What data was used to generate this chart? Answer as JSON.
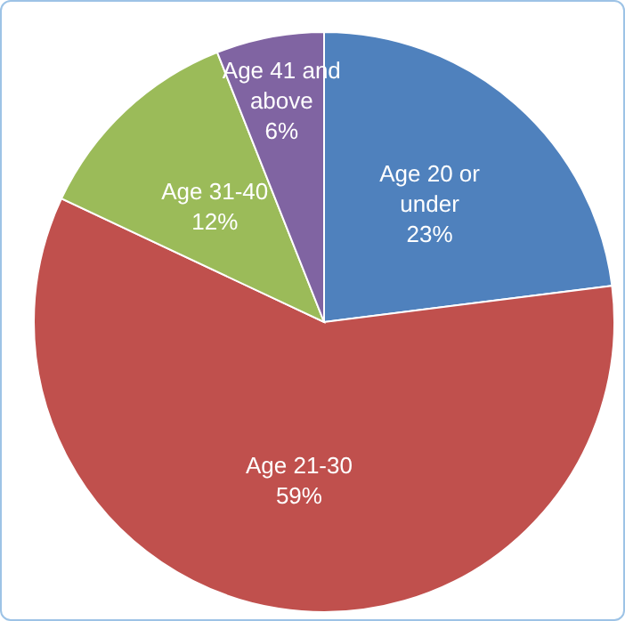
{
  "chart_data": {
    "type": "pie",
    "categories": [
      "Age 20 or under",
      "Age 21-30",
      "Age 31-40",
      "Age 41 and above"
    ],
    "values": [
      23,
      59,
      12,
      6
    ],
    "colors": [
      "#4f81bd",
      "#c0504d",
      "#9bbb59",
      "#8064a2"
    ],
    "value_labels": [
      "23%",
      "59%",
      "12%",
      "6%"
    ],
    "legend": false
  }
}
